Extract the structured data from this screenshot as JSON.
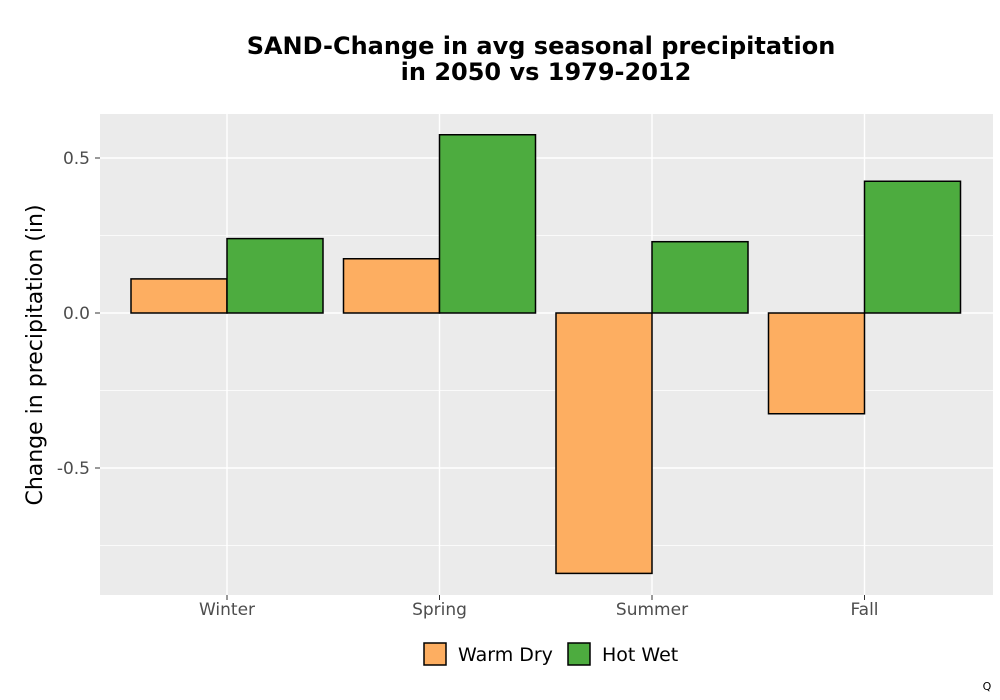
{
  "chart_data": {
    "type": "bar",
    "title_lines": [
      "SAND-Change in avg seasonal precipitation",
      "in 2050 vs 1979-2012"
    ],
    "xlabel": "",
    "ylabel": "Change in precipitation (in)",
    "categories": [
      "Winter",
      "Spring",
      "Summer",
      "Fall"
    ],
    "series": [
      {
        "name": "Warm Dry",
        "color": "#FDAE61",
        "values": [
          0.11,
          0.175,
          -0.84,
          -0.325
        ]
      },
      {
        "name": "Hot Wet",
        "color": "#4DAC3F",
        "values": [
          0.24,
          0.575,
          0.23,
          0.425
        ]
      }
    ],
    "ylim": [
      -0.9,
      0.64
    ],
    "yticks": [
      {
        "value": 0.5,
        "label": "0.5"
      },
      {
        "value": 0.0,
        "label": "0.0"
      },
      {
        "value": -0.5,
        "label": "-0.5"
      }
    ],
    "y_minor_gridlines": [
      0.25,
      -0.25,
      -0.75
    ],
    "grid": true,
    "panel_background": "#EBEBEB",
    "legend_position": "bottom"
  },
  "footer": {
    "corner_mark": "Q"
  }
}
